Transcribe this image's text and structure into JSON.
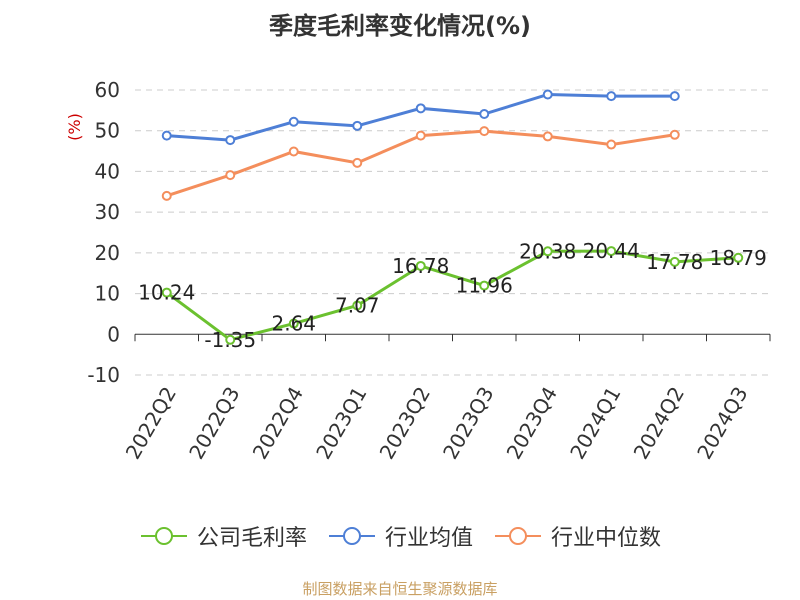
{
  "title": "季度毛利率变化情况(%)",
  "source": "制图数据来自恒生聚源数据库",
  "colors": {
    "company": "#6bc12f",
    "industry_avg": "#4e7fd6",
    "industry_median": "#f48e5c",
    "ylabel": "#cc0000"
  },
  "chart_data": {
    "type": "line",
    "categories": [
      "2022Q2",
      "2022Q3",
      "2022Q4",
      "2023Q1",
      "2023Q2",
      "2023Q3",
      "2023Q4",
      "2024Q1",
      "2024Q2",
      "2024Q3"
    ],
    "ylabel": "(%)",
    "ylim": [
      -10,
      60
    ],
    "yticks": [
      -10,
      0,
      10,
      20,
      30,
      40,
      50,
      60
    ],
    "grid": true,
    "legend_position": "bottom",
    "series": [
      {
        "name": "公司毛利率",
        "values": [
          10.24,
          -1.35,
          2.64,
          7.07,
          16.78,
          11.96,
          20.38,
          20.44,
          17.78,
          18.79
        ],
        "labels": [
          "10.24",
          "-1.35",
          "2.64",
          "7.07",
          "16.78",
          "11.96",
          "20.38",
          "20.44",
          "17.78",
          "18.79"
        ]
      },
      {
        "name": "行业均值",
        "values": [
          48.8,
          47.7,
          52.2,
          51.2,
          55.5,
          54.1,
          58.9,
          58.5,
          58.5,
          null
        ]
      },
      {
        "name": "行业中位数",
        "values": [
          34.0,
          39.1,
          44.9,
          42.1,
          48.8,
          49.9,
          48.6,
          46.6,
          49.0,
          null
        ]
      }
    ]
  }
}
